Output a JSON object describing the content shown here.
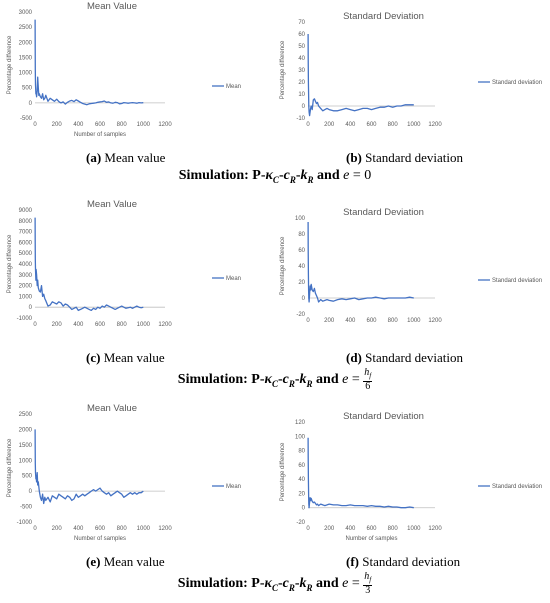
{
  "figure": {
    "panels": [
      {
        "letter": "(a)",
        "caption": "Mean value"
      },
      {
        "letter": "(b)",
        "caption": "Standard deviation"
      },
      {
        "letter": "(c)",
        "caption": "Mean value"
      },
      {
        "letter": "(d)",
        "caption": "Standard deviation"
      },
      {
        "letter": "(e)",
        "caption": "Mean value"
      },
      {
        "letter": "(f)",
        "caption": "Standard deviation"
      }
    ],
    "simulation_rows": [
      {
        "label": "Simulation:",
        "model": "P-κC-cR-kR",
        "and": "and",
        "e_expr": "e = 0"
      },
      {
        "label": "Simulation:",
        "model": "P-κC-cR-kR",
        "and": "and",
        "e_expr": "e = hf/6"
      },
      {
        "label": "Simulation:",
        "model": "P-κC-cR-kR",
        "and": "and",
        "e_expr": "e = hf/3"
      }
    ]
  },
  "colors": {
    "line": "#4472c4",
    "axis": "#bfbfbf",
    "text": "#595959"
  },
  "chart_data": [
    {
      "type": "line",
      "title": "Mean Value",
      "xlabel": "Number of samples",
      "ylabel": "Percentage difference",
      "xlim": [
        0,
        1200
      ],
      "xticks": [
        0,
        200,
        400,
        600,
        800,
        1000,
        1200
      ],
      "ylim": [
        -500,
        3000
      ],
      "yticks": [
        -500,
        0,
        500,
        1000,
        1500,
        2000,
        2500,
        3000
      ],
      "legend_position": "right",
      "series": [
        {
          "name": "Mean",
          "x": [
            1,
            2,
            3,
            5,
            8,
            10,
            15,
            20,
            25,
            30,
            35,
            40,
            50,
            60,
            70,
            80,
            90,
            100,
            120,
            140,
            160,
            180,
            200,
            220,
            240,
            260,
            280,
            300,
            320,
            340,
            360,
            380,
            400,
            420,
            440,
            460,
            480,
            500,
            520,
            540,
            560,
            580,
            600,
            620,
            640,
            660,
            680,
            700,
            720,
            740,
            760,
            780,
            800,
            820,
            840,
            860,
            880,
            900,
            920,
            940,
            960,
            980,
            1000
          ],
          "y": [
            2750,
            1800,
            1100,
            600,
            300,
            350,
            200,
            400,
            850,
            500,
            250,
            300,
            200,
            150,
            300,
            100,
            150,
            250,
            50,
            150,
            100,
            50,
            120,
            40,
            0,
            30,
            -40,
            20,
            60,
            80,
            40,
            100,
            60,
            20,
            -20,
            -40,
            -60,
            -30,
            -20,
            -10,
            0,
            20,
            30,
            40,
            60,
            20,
            30,
            0,
            -10,
            20,
            10,
            -30,
            -20,
            10,
            0,
            -10,
            0,
            10,
            0,
            -10,
            10,
            0,
            5
          ]
        }
      ]
    },
    {
      "type": "line",
      "title": "Standard Deviation",
      "xlabel": "",
      "ylabel": "Percentage difference",
      "xlim": [
        0,
        1200
      ],
      "xticks": [
        0,
        200,
        400,
        600,
        800,
        1000,
        1200
      ],
      "ylim": [
        -10,
        70
      ],
      "yticks": [
        -10,
        0,
        10,
        20,
        30,
        40,
        50,
        60,
        70
      ],
      "legend_position": "right",
      "series": [
        {
          "name": "Standard deviation",
          "x": [
            1,
            2,
            4,
            6,
            8,
            10,
            15,
            20,
            25,
            30,
            40,
            50,
            60,
            70,
            80,
            90,
            100,
            120,
            140,
            160,
            180,
            200,
            240,
            280,
            320,
            360,
            400,
            440,
            480,
            520,
            560,
            600,
            640,
            680,
            720,
            760,
            800,
            840,
            880,
            920,
            960,
            1000
          ],
          "y": [
            60,
            40,
            20,
            10,
            0,
            -5,
            -8,
            -5,
            -2,
            0,
            -3,
            5,
            6,
            4,
            2,
            3,
            0,
            -2,
            -4,
            -3,
            -2,
            -3,
            -4,
            -4,
            -3,
            -2,
            -3,
            -4,
            -3,
            -2,
            -2,
            -3,
            -2,
            -1,
            -1,
            0,
            -1,
            0,
            0,
            1,
            1,
            1
          ]
        }
      ]
    },
    {
      "type": "line",
      "title": "Mean Value",
      "xlabel": "",
      "ylabel": "Percentage difference",
      "xlim": [
        0,
        1200
      ],
      "xticks": [
        0,
        200,
        400,
        600,
        800,
        1000,
        1200
      ],
      "ylim": [
        -1000,
        9000
      ],
      "yticks": [
        -1000,
        0,
        1000,
        2000,
        3000,
        4000,
        5000,
        6000,
        7000,
        8000,
        9000
      ],
      "legend_position": "right",
      "series": [
        {
          "name": "Mean",
          "x": [
            1,
            2,
            3,
            5,
            8,
            10,
            15,
            20,
            25,
            30,
            40,
            50,
            60,
            70,
            80,
            90,
            100,
            120,
            140,
            160,
            180,
            200,
            220,
            240,
            260,
            280,
            300,
            320,
            340,
            360,
            380,
            400,
            420,
            440,
            460,
            480,
            500,
            520,
            540,
            560,
            580,
            600,
            620,
            640,
            660,
            680,
            700,
            720,
            740,
            760,
            780,
            800,
            820,
            840,
            860,
            880,
            900,
            920,
            940,
            960,
            980,
            1000
          ],
          "y": [
            8300,
            6000,
            4500,
            3500,
            2500,
            3500,
            3000,
            2000,
            2500,
            1800,
            1500,
            1400,
            2000,
            1000,
            1200,
            800,
            600,
            100,
            200,
            500,
            400,
            300,
            500,
            400,
            100,
            300,
            200,
            0,
            -200,
            -100,
            0,
            -300,
            -200,
            -100,
            0,
            -100,
            -200,
            -300,
            -100,
            -200,
            0,
            -100,
            100,
            0,
            200,
            100,
            0,
            -100,
            -200,
            -100,
            0,
            100,
            0,
            -100,
            -50,
            0,
            -100,
            0,
            100,
            0,
            -50,
            0
          ]
        }
      ]
    },
    {
      "type": "line",
      "title": "Standard Deviation",
      "xlabel": "",
      "ylabel": "Percentage difference",
      "xlim": [
        0,
        1200
      ],
      "xticks": [
        0,
        200,
        400,
        600,
        800,
        1000,
        1200
      ],
      "ylim": [
        -20,
        100
      ],
      "yticks": [
        -20,
        0,
        20,
        40,
        60,
        80,
        100
      ],
      "legend_position": "right",
      "series": [
        {
          "name": "Standard deviation",
          "x": [
            1,
            2,
            4,
            6,
            8,
            10,
            15,
            20,
            25,
            30,
            40,
            50,
            60,
            70,
            80,
            90,
            100,
            120,
            140,
            160,
            180,
            200,
            240,
            280,
            320,
            360,
            400,
            440,
            480,
            520,
            560,
            600,
            640,
            680,
            720,
            760,
            800,
            840,
            880,
            920,
            960,
            1000
          ],
          "y": [
            95,
            60,
            30,
            10,
            0,
            -5,
            5,
            15,
            10,
            17,
            10,
            8,
            12,
            6,
            3,
            0,
            -5,
            -2,
            -4,
            -3,
            -2,
            -3,
            -4,
            -2,
            -1,
            -2,
            -1,
            0,
            -2,
            -1,
            0,
            0,
            1,
            0,
            -1,
            0,
            0,
            0,
            0,
            0,
            1,
            0
          ]
        }
      ]
    },
    {
      "type": "line",
      "title": "Mean Value",
      "xlabel": "Number of samples",
      "ylabel": "Percentage difference",
      "xlim": [
        0,
        1200
      ],
      "xticks": [
        0,
        200,
        400,
        600,
        800,
        1000,
        1200
      ],
      "ylim": [
        -1000,
        2500
      ],
      "yticks": [
        -1000,
        -500,
        0,
        500,
        1000,
        1500,
        2000,
        2500
      ],
      "legend_position": "right",
      "series": [
        {
          "name": "Mean",
          "x": [
            1,
            2,
            3,
            5,
            8,
            10,
            15,
            20,
            25,
            30,
            40,
            50,
            60,
            70,
            80,
            90,
            100,
            120,
            140,
            160,
            180,
            200,
            220,
            240,
            260,
            280,
            300,
            320,
            340,
            360,
            380,
            400,
            420,
            440,
            460,
            480,
            500,
            520,
            540,
            560,
            580,
            600,
            620,
            640,
            660,
            680,
            700,
            720,
            740,
            760,
            780,
            800,
            820,
            840,
            860,
            880,
            900,
            920,
            940,
            960,
            980,
            1000
          ],
          "y": [
            2000,
            1400,
            900,
            600,
            400,
            500,
            300,
            600,
            200,
            300,
            0,
            -200,
            -300,
            -100,
            -400,
            -200,
            -300,
            -200,
            -350,
            -150,
            -200,
            -250,
            -100,
            -150,
            -200,
            -250,
            -150,
            -200,
            -300,
            -250,
            -100,
            -200,
            -150,
            -100,
            -150,
            -100,
            -50,
            0,
            50,
            0,
            50,
            100,
            0,
            -50,
            -100,
            -50,
            -150,
            -100,
            -50,
            0,
            -50,
            -100,
            -200,
            -150,
            -100,
            -50,
            -100,
            -50,
            -100,
            -50,
            -50,
            0
          ]
        }
      ]
    },
    {
      "type": "line",
      "title": "Standard Deviation",
      "xlabel": "Number of samples",
      "ylabel": "Percentage difference",
      "xlim": [
        0,
        1200
      ],
      "xticks": [
        0,
        200,
        400,
        600,
        800,
        1000,
        1200
      ],
      "ylim": [
        -20,
        120
      ],
      "yticks": [
        -20,
        0,
        20,
        40,
        60,
        80,
        100,
        120
      ],
      "legend_position": "right",
      "series": [
        {
          "name": "Standard deviation",
          "x": [
            1,
            2,
            4,
            6,
            8,
            10,
            15,
            20,
            25,
            30,
            40,
            50,
            60,
            70,
            80,
            90,
            100,
            120,
            140,
            160,
            180,
            200,
            240,
            280,
            320,
            360,
            400,
            440,
            480,
            520,
            560,
            600,
            640,
            680,
            720,
            760,
            800,
            840,
            880,
            920,
            960,
            1000
          ],
          "y": [
            98,
            70,
            40,
            20,
            5,
            0,
            8,
            14,
            10,
            13,
            9,
            7,
            8,
            6,
            4,
            5,
            3,
            5,
            4,
            3,
            4,
            5,
            4,
            4,
            3,
            3,
            4,
            3,
            3,
            3,
            2,
            3,
            2,
            2,
            1,
            2,
            1,
            1,
            0,
            0,
            1,
            0
          ]
        }
      ]
    }
  ]
}
